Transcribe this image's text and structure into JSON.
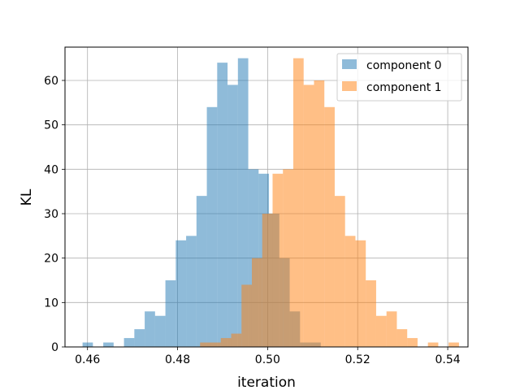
{
  "chart_data": {
    "type": "bar",
    "subtype": "histogram",
    "xlabel": "iteration",
    "ylabel": "KL",
    "xlim": [
      0.455,
      0.5445
    ],
    "ylim": [
      0,
      67.5
    ],
    "xticks": [
      0.46,
      0.48,
      0.5,
      0.52,
      0.54
    ],
    "xtick_labels": [
      "0.46",
      "0.48",
      "0.50",
      "0.52",
      "0.54"
    ],
    "yticks": [
      0,
      10,
      20,
      30,
      40,
      50,
      60
    ],
    "ytick_labels": [
      "0",
      "10",
      "20",
      "30",
      "40",
      "50",
      "60"
    ],
    "grid": true,
    "legend_position": "upper right",
    "bin_width": 0.0023,
    "series": [
      {
        "name": "component 0",
        "color": "#1f77b4",
        "opacity": 0.5,
        "bin_start": 0.4589,
        "counts": [
          1,
          0,
          1,
          0,
          2,
          4,
          8,
          7,
          15,
          24,
          25,
          34,
          54,
          64,
          59,
          65,
          40,
          39,
          30,
          20,
          8,
          1,
          1
        ]
      },
      {
        "name": "component 1",
        "color": "#ff7f0e",
        "opacity": 0.5,
        "bin_start": 0.485,
        "counts": [
          1,
          1,
          2,
          3,
          14,
          20,
          30,
          39,
          40,
          65,
          59,
          60,
          54,
          34,
          25,
          24,
          15,
          7,
          8,
          4,
          2,
          0,
          1,
          0,
          1
        ]
      }
    ]
  }
}
